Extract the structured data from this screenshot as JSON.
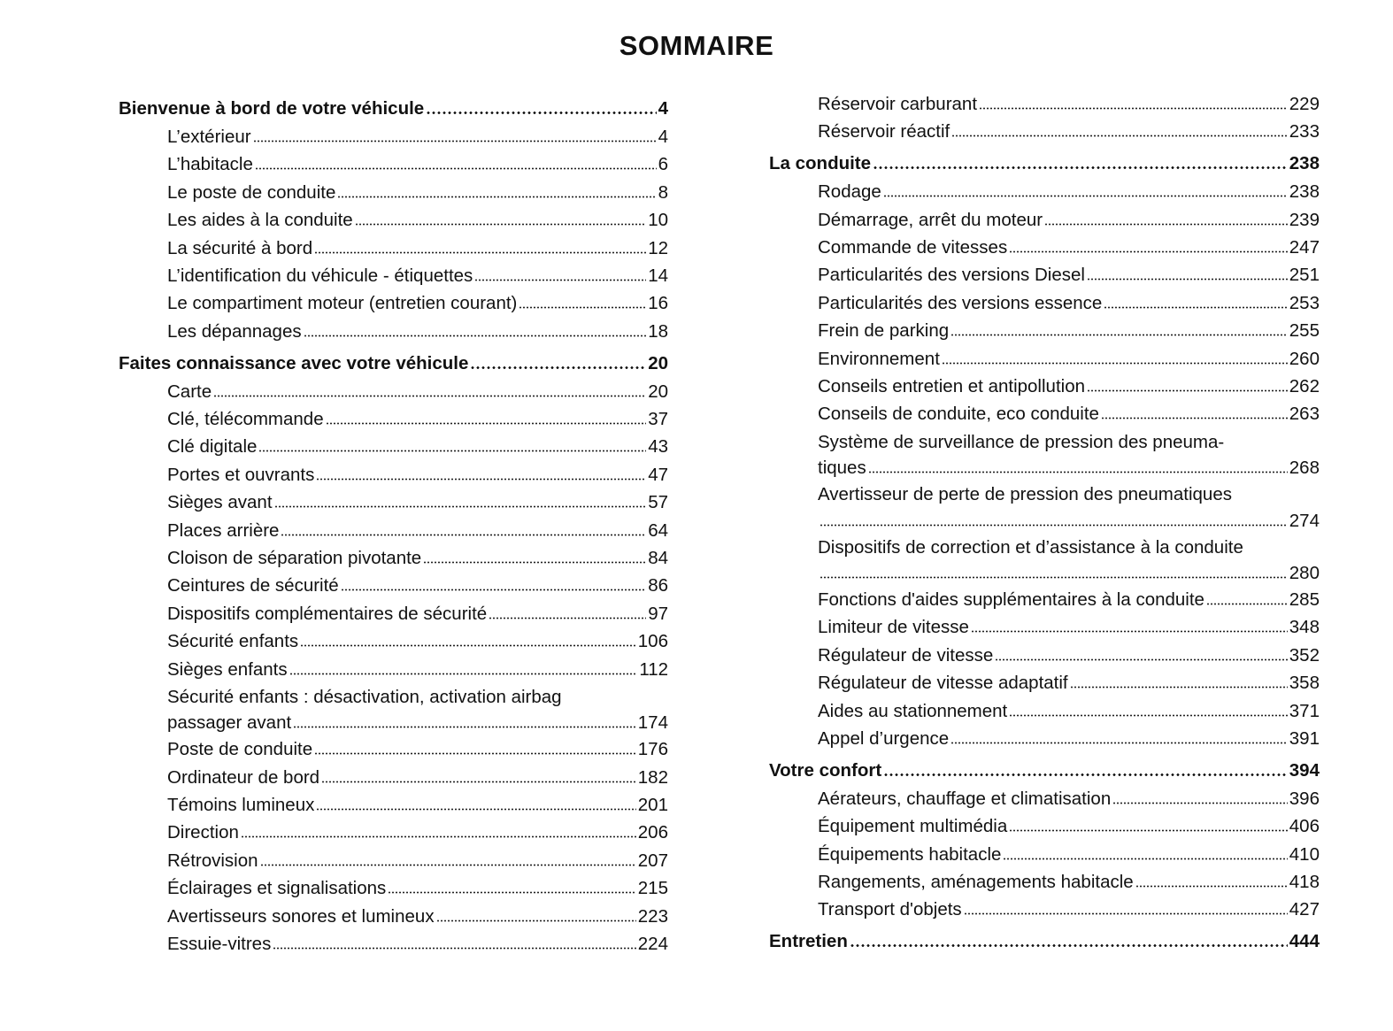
{
  "title": "SOMMAIRE",
  "left": [
    {
      "type": "section",
      "label": "Bienvenue à bord de votre véhicule",
      "page": "4"
    },
    {
      "type": "entry",
      "label": "L’extérieur",
      "page": "4"
    },
    {
      "type": "entry",
      "label": "L’habitacle",
      "page": "6"
    },
    {
      "type": "entry",
      "label": "Le poste de conduite",
      "page": "8"
    },
    {
      "type": "entry",
      "label": "Les aides à la conduite",
      "page": "10"
    },
    {
      "type": "entry",
      "label": "La sécurité à bord",
      "page": "12"
    },
    {
      "type": "entry",
      "label": "L’identification du véhicule - étiquettes",
      "page": "14"
    },
    {
      "type": "entry",
      "label": "Le compartiment moteur (entretien courant)",
      "page": "16"
    },
    {
      "type": "entry",
      "label": "Les dépannages",
      "page": "18"
    },
    {
      "type": "section",
      "label": "Faites connaissance avec votre véhicule",
      "page": "20"
    },
    {
      "type": "entry",
      "label": "Carte",
      "page": "20"
    },
    {
      "type": "entry",
      "label": "Clé, télécommande",
      "page": "37"
    },
    {
      "type": "entry",
      "label": "Clé digitale",
      "page": "43"
    },
    {
      "type": "entry",
      "label": "Portes et ouvrants",
      "page": "47"
    },
    {
      "type": "entry",
      "label": "Sièges avant",
      "page": "57"
    },
    {
      "type": "entry",
      "label": "Places arrière",
      "page": "64"
    },
    {
      "type": "entry",
      "label": "Cloison de séparation pivotante",
      "page": "84"
    },
    {
      "type": "entry",
      "label": "Ceintures de sécurité",
      "page": "86"
    },
    {
      "type": "entry",
      "label": "Dispositifs complémentaires de sécurité",
      "page": "97"
    },
    {
      "type": "entry",
      "label": "Sécurité enfants",
      "page": "106"
    },
    {
      "type": "entry",
      "label": "Sièges enfants",
      "page": "112"
    },
    {
      "type": "entry",
      "label": "Sécurité enfants : désactivation, activation airbag",
      "label2": "passager avant",
      "page": "174"
    },
    {
      "type": "entry",
      "label": "Poste de conduite",
      "page": "176"
    },
    {
      "type": "entry",
      "label": "Ordinateur de bord",
      "page": "182"
    },
    {
      "type": "entry",
      "label": "Témoins lumineux",
      "page": "201"
    },
    {
      "type": "entry",
      "label": "Direction",
      "page": "206"
    },
    {
      "type": "entry",
      "label": "Rétrovision",
      "page": "207"
    },
    {
      "type": "entry",
      "label": "Éclairages et signalisations",
      "page": "215"
    },
    {
      "type": "entry",
      "label": "Avertisseurs sonores et lumineux",
      "page": "223"
    },
    {
      "type": "entry",
      "label": "Essuie-vitres",
      "page": "224"
    }
  ],
  "right": [
    {
      "type": "entry",
      "label": "Réservoir carburant",
      "page": "229"
    },
    {
      "type": "entry",
      "label": "Réservoir réactif",
      "page": "233"
    },
    {
      "type": "section",
      "label": "La conduite",
      "page": "238"
    },
    {
      "type": "entry",
      "label": "Rodage",
      "page": "238"
    },
    {
      "type": "entry",
      "label": "Démarrage, arrêt du moteur",
      "page": "239"
    },
    {
      "type": "entry",
      "label": "Commande de vitesses",
      "page": "247"
    },
    {
      "type": "entry",
      "label": "Particularités des versions Diesel",
      "page": "251"
    },
    {
      "type": "entry",
      "label": "Particularités des versions essence",
      "page": "253"
    },
    {
      "type": "entry",
      "label": "Frein de parking",
      "page": "255"
    },
    {
      "type": "entry",
      "label": "Environnement",
      "page": "260"
    },
    {
      "type": "entry",
      "label": "Conseils entretien et antipollution",
      "page": "262"
    },
    {
      "type": "entry",
      "label": "Conseils de conduite, eco conduite",
      "page": "263"
    },
    {
      "type": "entry",
      "label": "Système de surveillance de pression des pneuma-",
      "label2": "tiques",
      "page": "268"
    },
    {
      "type": "entry",
      "label": "Avertisseur de perte de pression des pneumatiques",
      "label2": "",
      "page": "274"
    },
    {
      "type": "entry",
      "label": "Dispositifs de correction et d’assistance à la conduite",
      "label2": "",
      "page": "280"
    },
    {
      "type": "entry",
      "label": "Fonctions d'aides supplémentaires à la conduite",
      "page": "285"
    },
    {
      "type": "entry",
      "label": "Limiteur de vitesse",
      "page": "348"
    },
    {
      "type": "entry",
      "label": "Régulateur de vitesse",
      "page": "352"
    },
    {
      "type": "entry",
      "label": "Régulateur de vitesse adaptatif",
      "page": "358"
    },
    {
      "type": "entry",
      "label": "Aides au stationnement",
      "page": "371"
    },
    {
      "type": "entry",
      "label": "Appel d’urgence",
      "page": "391"
    },
    {
      "type": "section",
      "label": "Votre confort",
      "page": "394"
    },
    {
      "type": "entry",
      "label": "Aérateurs, chauffage et climatisation",
      "page": "396"
    },
    {
      "type": "entry",
      "label": "Équipement multimédia",
      "page": "406"
    },
    {
      "type": "entry",
      "label": "Équipements habitacle",
      "page": "410"
    },
    {
      "type": "entry",
      "label": "Rangements, aménagements habitacle",
      "page": "418"
    },
    {
      "type": "entry",
      "label": "Transport d'objets",
      "page": "427"
    },
    {
      "type": "section",
      "label": "Entretien",
      "page": "444"
    }
  ]
}
